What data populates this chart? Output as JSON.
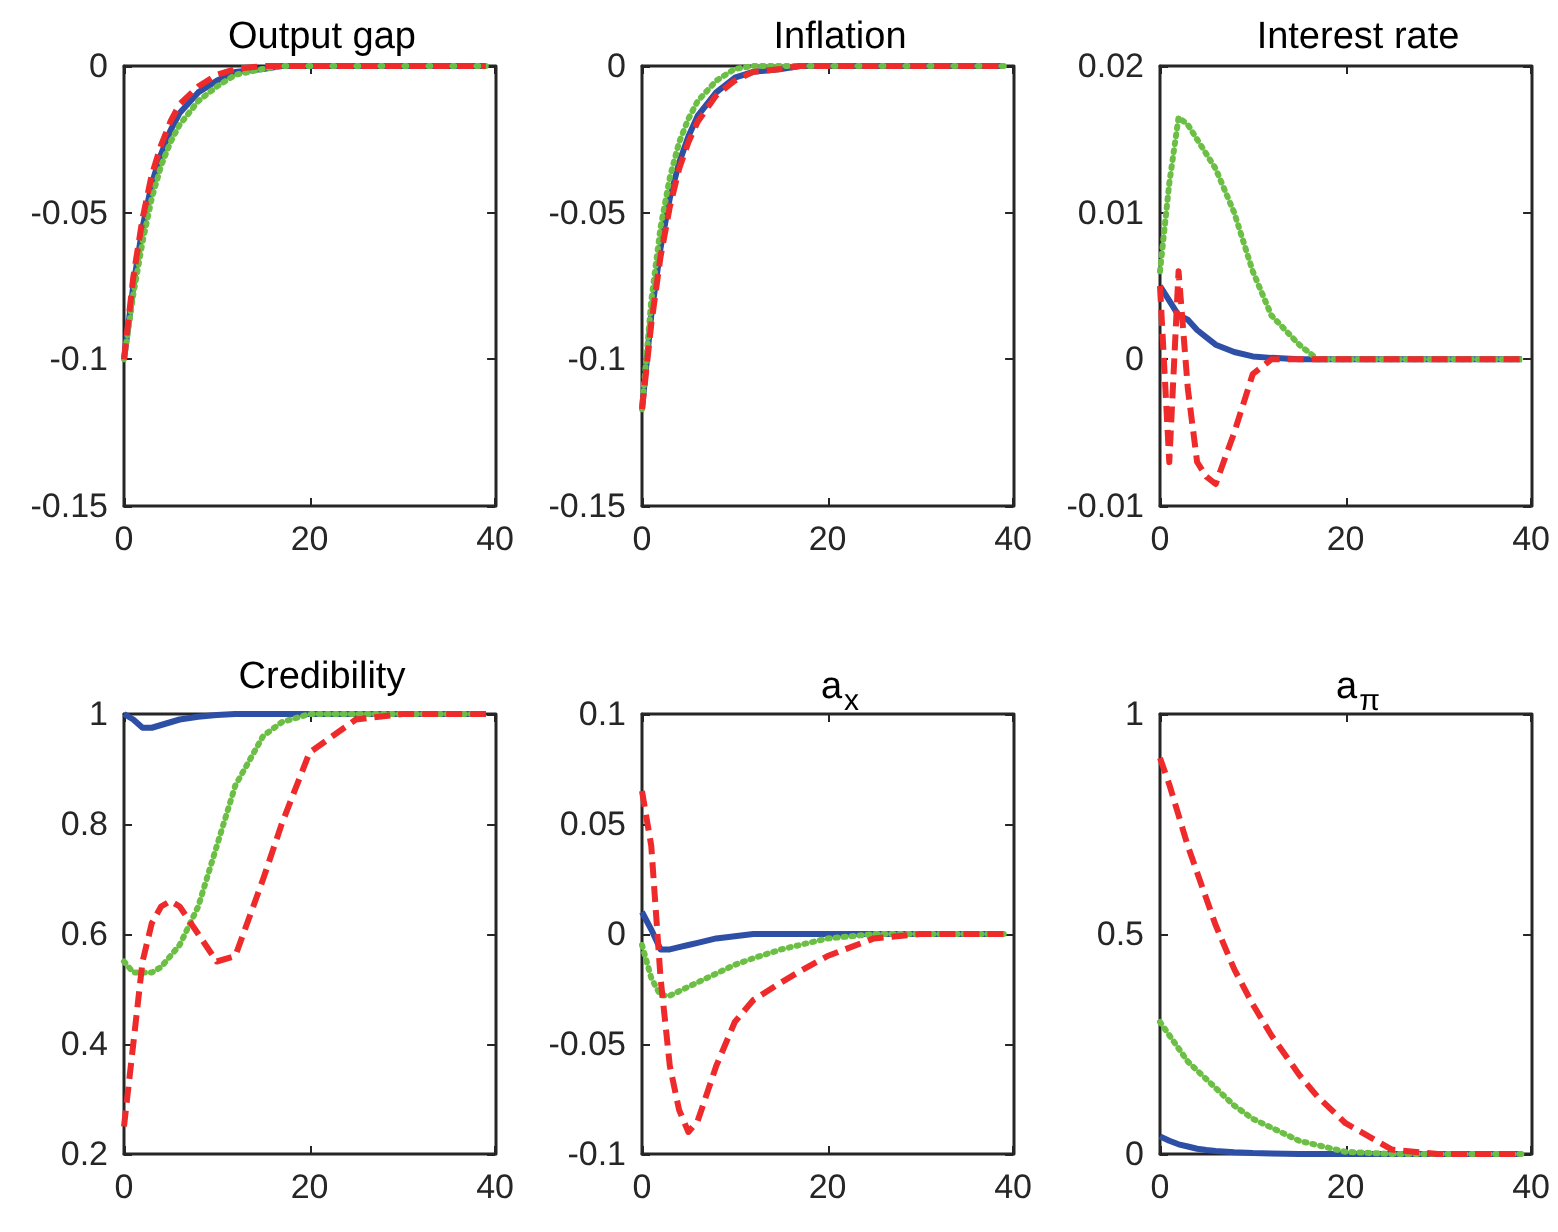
{
  "chart_data": [
    {
      "type": "line",
      "title": "Output gap",
      "x": [
        0,
        1,
        2,
        3,
        4,
        5,
        6,
        8,
        10,
        12,
        15,
        17,
        20,
        25,
        30,
        39
      ],
      "xlim": [
        0,
        40
      ],
      "xticks": [
        0,
        20,
        40
      ],
      "ylim": [
        -0.15,
        0
      ],
      "yticks": [
        -0.15,
        -0.1,
        -0.05,
        0
      ],
      "grid": false,
      "marker": "none",
      "series": [
        {
          "color": "#2e4fa6",
          "line_style": "solid",
          "values": [
            -0.1,
            -0.075,
            -0.055,
            -0.04,
            -0.03,
            -0.022,
            -0.016,
            -0.009,
            -0.005,
            -0.002,
            -0.001,
            0,
            0,
            0,
            0,
            0
          ]
        },
        {
          "color": "#6cbf45",
          "line_style": "dotted",
          "values": [
            -0.1,
            -0.078,
            -0.06,
            -0.045,
            -0.034,
            -0.026,
            -0.02,
            -0.012,
            -0.007,
            -0.003,
            -0.001,
            0,
            0,
            0,
            0,
            0
          ]
        },
        {
          "color": "#ee2a2a",
          "line_style": "dashed",
          "values": [
            -0.1,
            -0.072,
            -0.052,
            -0.037,
            -0.027,
            -0.019,
            -0.013,
            -0.007,
            -0.003,
            -0.001,
            0,
            0,
            0,
            0,
            0,
            0
          ]
        }
      ]
    },
    {
      "type": "line",
      "title": "Inflation",
      "x": [
        0,
        1,
        2,
        3,
        4,
        5,
        6,
        8,
        10,
        12,
        15,
        17,
        20,
        25,
        30,
        39
      ],
      "xlim": [
        0,
        40
      ],
      "xticks": [
        0,
        20,
        40
      ],
      "ylim": [
        -0.15,
        0
      ],
      "yticks": [
        -0.15,
        -0.1,
        -0.05,
        0
      ],
      "grid": false,
      "marker": "none",
      "series": [
        {
          "color": "#2e4fa6",
          "line_style": "solid",
          "values": [
            -0.117,
            -0.085,
            -0.062,
            -0.045,
            -0.033,
            -0.024,
            -0.017,
            -0.009,
            -0.004,
            -0.002,
            -0.001,
            0,
            0,
            0,
            0,
            0
          ]
        },
        {
          "color": "#6cbf45",
          "line_style": "dotted",
          "values": [
            -0.117,
            -0.08,
            -0.055,
            -0.038,
            -0.026,
            -0.018,
            -0.012,
            -0.005,
            -0.001,
            0,
            0,
            0,
            0,
            0,
            0,
            0
          ]
        },
        {
          "color": "#ee2a2a",
          "line_style": "dashed",
          "values": [
            -0.117,
            -0.088,
            -0.065,
            -0.048,
            -0.035,
            -0.026,
            -0.019,
            -0.01,
            -0.005,
            -0.002,
            -0.001,
            0,
            0,
            0,
            0,
            0
          ]
        }
      ]
    },
    {
      "type": "line",
      "title": "Interest rate",
      "x": [
        0,
        1,
        2,
        3,
        4,
        5,
        6,
        8,
        10,
        12,
        15,
        17,
        20,
        25,
        30,
        39
      ],
      "xlim": [
        0,
        40
      ],
      "xticks": [
        0,
        20,
        40
      ],
      "ylim": [
        -0.01,
        0.02
      ],
      "yticks": [
        -0.01,
        0,
        0.01,
        0.02
      ],
      "grid": false,
      "marker": "none",
      "series": [
        {
          "color": "#2e4fa6",
          "line_style": "solid",
          "values": [
            0.005,
            0.004,
            0.003,
            0.0027,
            0.002,
            0.0015,
            0.001,
            0.0005,
            0.0002,
            0.0001,
            0,
            0,
            0,
            0,
            0,
            0
          ]
        },
        {
          "color": "#6cbf45",
          "line_style": "dotted",
          "values": [
            0.006,
            0.012,
            0.0165,
            0.016,
            0.015,
            0.014,
            0.013,
            0.01,
            0.006,
            0.003,
            0.001,
            0,
            0,
            0,
            0,
            0
          ]
        },
        {
          "color": "#ee2a2a",
          "line_style": "dashed",
          "values": [
            0.005,
            -0.007,
            0.006,
            -0.002,
            -0.007,
            -0.008,
            -0.0085,
            -0.005,
            -0.001,
            0,
            0,
            0,
            0,
            0,
            0,
            0
          ]
        }
      ]
    },
    {
      "type": "line",
      "title": "Credibility",
      "x": [
        0,
        1,
        2,
        3,
        4,
        5,
        6,
        8,
        10,
        12,
        15,
        17,
        20,
        25,
        30,
        39
      ],
      "xlim": [
        0,
        40
      ],
      "xticks": [
        0,
        20,
        40
      ],
      "ylim": [
        0.2,
        1
      ],
      "yticks": [
        0.2,
        0.4,
        0.6,
        0.8,
        1
      ],
      "grid": false,
      "marker": "none",
      "series": [
        {
          "color": "#2e4fa6",
          "line_style": "solid",
          "values": [
            1,
            0.99,
            0.975,
            0.975,
            0.98,
            0.985,
            0.99,
            0.995,
            0.998,
            1,
            1,
            1,
            1,
            1,
            1,
            1
          ]
        },
        {
          "color": "#6cbf45",
          "line_style": "dotted",
          "values": [
            0.55,
            0.53,
            0.53,
            0.53,
            0.54,
            0.56,
            0.58,
            0.65,
            0.76,
            0.87,
            0.96,
            0.985,
            1,
            1,
            1,
            1
          ]
        },
        {
          "color": "#ee2a2a",
          "line_style": "dashed",
          "values": [
            0.25,
            0.4,
            0.55,
            0.62,
            0.65,
            0.66,
            0.65,
            0.6,
            0.55,
            0.56,
            0.7,
            0.8,
            0.93,
            0.99,
            1,
            1
          ]
        }
      ]
    },
    {
      "type": "line",
      "title": "a$_{x}$",
      "x": [
        0,
        1,
        2,
        3,
        4,
        5,
        6,
        8,
        10,
        12,
        15,
        17,
        20,
        25,
        30,
        39
      ],
      "xlim": [
        0,
        40
      ],
      "xticks": [
        0,
        20,
        40
      ],
      "ylim": [
        -0.1,
        0.1
      ],
      "yticks": [
        -0.1,
        -0.05,
        0,
        0.05,
        0.1
      ],
      "grid": false,
      "marker": "none",
      "series": [
        {
          "color": "#2e4fa6",
          "line_style": "solid",
          "values": [
            0.01,
            0.002,
            -0.007,
            -0.007,
            -0.006,
            -0.005,
            -0.004,
            -0.002,
            -0.001,
            0,
            0,
            0,
            0,
            0,
            0,
            0
          ]
        },
        {
          "color": "#6cbf45",
          "line_style": "dotted",
          "values": [
            -0.005,
            -0.02,
            -0.028,
            -0.028,
            -0.026,
            -0.024,
            -0.022,
            -0.018,
            -0.014,
            -0.011,
            -0.007,
            -0.005,
            -0.002,
            0,
            0,
            0
          ]
        },
        {
          "color": "#ee2a2a",
          "line_style": "dashed",
          "values": [
            0.065,
            0.04,
            -0.02,
            -0.06,
            -0.08,
            -0.09,
            -0.085,
            -0.06,
            -0.04,
            -0.03,
            -0.022,
            -0.017,
            -0.01,
            -0.002,
            0,
            0
          ]
        }
      ]
    },
    {
      "type": "line",
      "title": "a$_{π}$",
      "x": [
        0,
        1,
        2,
        3,
        4,
        5,
        6,
        8,
        10,
        12,
        15,
        17,
        20,
        25,
        30,
        39
      ],
      "xlim": [
        0,
        40
      ],
      "xticks": [
        0,
        20,
        40
      ],
      "ylim": [
        0,
        1
      ],
      "yticks": [
        0,
        0.5,
        1
      ],
      "grid": false,
      "marker": "none",
      "series": [
        {
          "color": "#2e4fa6",
          "line_style": "solid",
          "values": [
            0.04,
            0.03,
            0.022,
            0.017,
            0.012,
            0.009,
            0.007,
            0.004,
            0.002,
            0.001,
            0,
            0,
            0,
            0,
            0,
            0
          ]
        },
        {
          "color": "#6cbf45",
          "line_style": "dotted",
          "values": [
            0.3,
            0.27,
            0.24,
            0.21,
            0.19,
            0.17,
            0.15,
            0.11,
            0.08,
            0.06,
            0.03,
            0.02,
            0.005,
            0,
            0,
            0
          ]
        },
        {
          "color": "#ee2a2a",
          "line_style": "dashed",
          "values": [
            0.9,
            0.84,
            0.77,
            0.7,
            0.64,
            0.58,
            0.52,
            0.42,
            0.34,
            0.27,
            0.18,
            0.13,
            0.07,
            0.01,
            0,
            0
          ]
        }
      ]
    }
  ]
}
